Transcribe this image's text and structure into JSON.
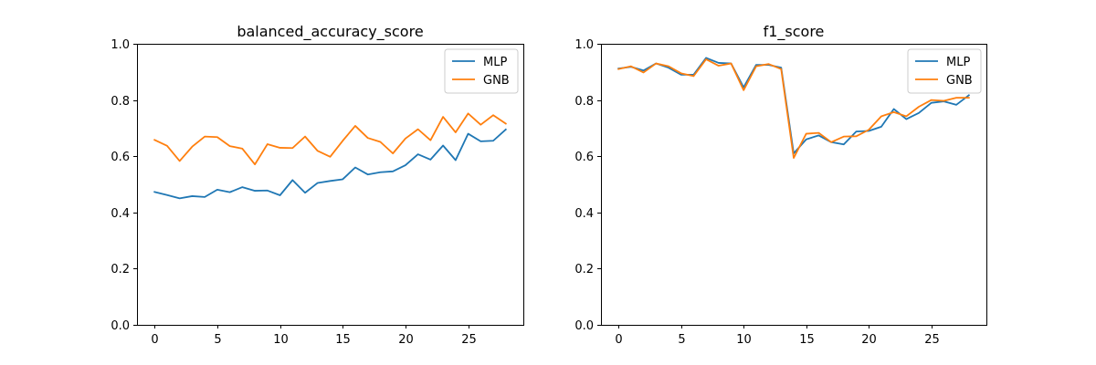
{
  "chart_data": [
    {
      "type": "line",
      "title": "balanced_accuracy_score",
      "xlabel": "",
      "ylabel": "",
      "xlim": [
        -1.4,
        29.4
      ],
      "ylim": [
        0.0,
        1.0
      ],
      "xticks": [
        0,
        5,
        10,
        15,
        20,
        25
      ],
      "yticks": [
        0.0,
        0.2,
        0.4,
        0.6,
        0.8,
        1.0
      ],
      "xtick_labels": [
        "0",
        "5",
        "10",
        "15",
        "20",
        "25"
      ],
      "ytick_labels": [
        "0.0",
        "0.2",
        "0.4",
        "0.6",
        "0.8",
        "1.0"
      ],
      "grid": false,
      "legend_position": "top-right",
      "x": [
        0,
        1,
        2,
        3,
        4,
        5,
        6,
        7,
        8,
        9,
        10,
        11,
        12,
        13,
        14,
        15,
        16,
        17,
        18,
        19,
        20,
        21,
        22,
        23,
        24,
        25,
        26,
        27,
        28
      ],
      "series": [
        {
          "name": "MLP",
          "color": "#1f77b4",
          "values": [
            0.473,
            0.462,
            0.45,
            0.458,
            0.455,
            0.481,
            0.472,
            0.49,
            0.477,
            0.478,
            0.461,
            0.515,
            0.47,
            0.505,
            0.512,
            0.518,
            0.56,
            0.535,
            0.543,
            0.546,
            0.568,
            0.607,
            0.588,
            0.638,
            0.586,
            0.68,
            0.653,
            0.655,
            0.695
          ]
        },
        {
          "name": "GNB",
          "color": "#ff7f0e",
          "values": [
            0.658,
            0.637,
            0.583,
            0.634,
            0.67,
            0.668,
            0.636,
            0.627,
            0.571,
            0.643,
            0.63,
            0.629,
            0.67,
            0.619,
            0.598,
            0.655,
            0.708,
            0.665,
            0.651,
            0.61,
            0.663,
            0.696,
            0.657,
            0.74,
            0.685,
            0.752,
            0.712,
            0.746,
            0.716
          ]
        }
      ]
    },
    {
      "type": "line",
      "title": "f1_score",
      "xlabel": "",
      "ylabel": "",
      "xlim": [
        -1.4,
        29.4
      ],
      "ylim": [
        0.0,
        1.0
      ],
      "xticks": [
        0,
        5,
        10,
        15,
        20,
        25
      ],
      "yticks": [
        0.0,
        0.2,
        0.4,
        0.6,
        0.8,
        1.0
      ],
      "xtick_labels": [
        "0",
        "5",
        "10",
        "15",
        "20",
        "25"
      ],
      "ytick_labels": [
        "0.0",
        "0.2",
        "0.4",
        "0.6",
        "0.8",
        "1.0"
      ],
      "grid": false,
      "legend_position": "top-right",
      "x": [
        0,
        1,
        2,
        3,
        4,
        5,
        6,
        7,
        8,
        9,
        10,
        11,
        12,
        13,
        14,
        15,
        16,
        17,
        18,
        19,
        20,
        21,
        22,
        23,
        24,
        25,
        26,
        27,
        28
      ],
      "series": [
        {
          "name": "MLP",
          "color": "#1f77b4",
          "values": [
            0.912,
            0.918,
            0.905,
            0.93,
            0.915,
            0.89,
            0.89,
            0.95,
            0.932,
            0.93,
            0.845,
            0.925,
            0.925,
            0.915,
            0.61,
            0.66,
            0.674,
            0.65,
            0.642,
            0.688,
            0.69,
            0.705,
            0.768,
            0.732,
            0.754,
            0.79,
            0.795,
            0.783,
            0.817
          ]
        },
        {
          "name": "GNB",
          "color": "#ff7f0e",
          "values": [
            0.91,
            0.92,
            0.898,
            0.93,
            0.92,
            0.895,
            0.885,
            0.945,
            0.922,
            0.93,
            0.835,
            0.92,
            0.928,
            0.91,
            0.594,
            0.68,
            0.683,
            0.65,
            0.67,
            0.671,
            0.694,
            0.742,
            0.757,
            0.742,
            0.776,
            0.8,
            0.797,
            0.808,
            0.808
          ]
        }
      ]
    }
  ]
}
